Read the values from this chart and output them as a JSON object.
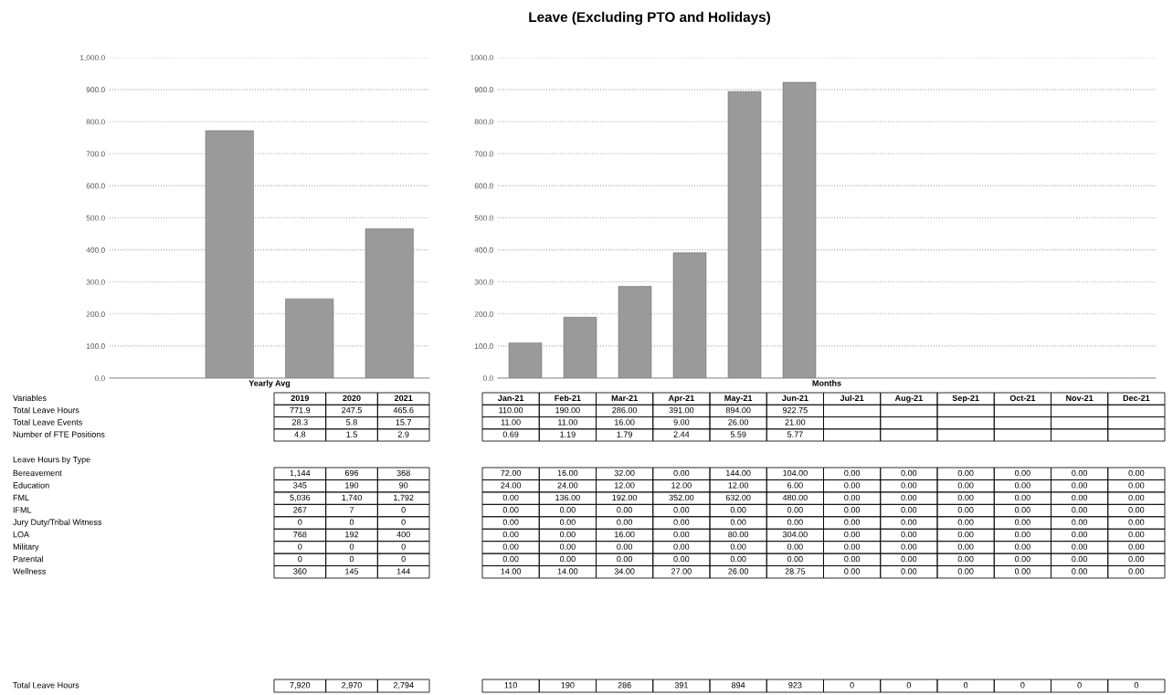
{
  "chart_data": [
    {
      "type": "bar",
      "xlabel": "Yearly Avg",
      "categories": [
        null,
        null,
        null,
        null
      ],
      "values": [
        null,
        771.9,
        247.5,
        465.6
      ],
      "color": "#9a9a9a",
      "ylim": [
        0,
        1000
      ],
      "yticks": [
        {
          "value": 0,
          "label": "0.0"
        },
        {
          "value": 100,
          "label": "100.0"
        },
        {
          "value": 200,
          "label": "200.0"
        },
        {
          "value": 300,
          "label": "300.0"
        },
        {
          "value": 400,
          "label": "400.0"
        },
        {
          "value": 500,
          "label": "500.0"
        },
        {
          "value": 600,
          "label": "600.0"
        },
        {
          "value": 700,
          "label": "700.0"
        },
        {
          "value": 800,
          "label": "800.0"
        },
        {
          "value": 900,
          "label": "900.0"
        },
        {
          "value": 1000,
          "label": "1,000.0"
        }
      ],
      "grid": "y"
    },
    {
      "type": "bar",
      "title": "Leave (Excluding PTO and Holidays)",
      "xlabel": "Months",
      "categories": [
        null,
        null,
        null,
        null,
        null,
        null,
        null,
        null,
        null,
        null,
        null,
        null
      ],
      "values": [
        110,
        190,
        286,
        391,
        894,
        922.75,
        null,
        null,
        null,
        null,
        null,
        null
      ],
      "color": "#9a9a9a",
      "ylim": [
        0,
        1000
      ],
      "yticks": [
        {
          "value": 0,
          "label": "0.0"
        },
        {
          "value": 100,
          "label": "100.0"
        },
        {
          "value": 200,
          "label": "200.0"
        },
        {
          "value": 300,
          "label": "300.0"
        },
        {
          "value": 400,
          "label": "400.0"
        },
        {
          "value": 500,
          "label": "500.0"
        },
        {
          "value": 600,
          "label": "600.0"
        },
        {
          "value": 700,
          "label": "700.0"
        },
        {
          "value": 800,
          "label": "800.0"
        },
        {
          "value": 900,
          "label": "900.0"
        },
        {
          "value": 1000,
          "label": "1000.0"
        }
      ],
      "grid": "y"
    },
    {
      "type": "other",
      "title": "Variables",
      "categories": [
        "2019",
        "2020",
        "2021"
      ],
      "y_categories": [
        "Total Leave Hours",
        "Total Leave Events",
        "Number of FTE Positions"
      ],
      "cell_labels": [
        [
          "771.9",
          "247.5",
          "465.6"
        ],
        [
          "28.3",
          "5.8",
          "15.7"
        ],
        [
          "4.8",
          "1.5",
          "2.9"
        ]
      ]
    },
    {
      "type": "other",
      "categories": [
        "Jan-21",
        "Feb-21",
        "Mar-21",
        "Apr-21",
        "May-21",
        "Jun-21",
        "Jul-21",
        "Aug-21",
        "Sep-21",
        "Oct-21",
        "Nov-21",
        "Dec-21"
      ],
      "cell_labels": [
        [
          "110.00",
          "190.00",
          "286.00",
          "391.00",
          "894.00",
          "922.75",
          null,
          null,
          null,
          null,
          null,
          null
        ],
        [
          "11.00",
          "11.00",
          "16.00",
          "9.00",
          "26.00",
          "21.00",
          null,
          null,
          null,
          null,
          null,
          null
        ],
        [
          "0.69",
          "1.19",
          "1.79",
          "2.44",
          "5.59",
          "5.77",
          null,
          null,
          null,
          null,
          null,
          null
        ]
      ]
    },
    {
      "type": "other",
      "title": "Leave Hours by Type",
      "y_categories": [
        "Bereavement",
        "Education",
        "FML",
        "IFML",
        "Jury Duty/Tribal Witness",
        "LOA",
        "Military",
        "Parental",
        "Wellness"
      ],
      "cell_labels": [
        [
          "1,144",
          "696",
          "368"
        ],
        [
          "345",
          "190",
          "90"
        ],
        [
          "5,036",
          "1,740",
          "1,792"
        ],
        [
          "267",
          "7",
          "0"
        ],
        [
          "0",
          "0",
          "0"
        ],
        [
          "768",
          "192",
          "400"
        ],
        [
          "0",
          "0",
          "0"
        ],
        [
          "0",
          "0",
          "0"
        ],
        [
          "360",
          "145",
          "144"
        ]
      ]
    },
    {
      "type": "other",
      "cell_labels": [
        [
          "72.00",
          "16.00",
          "32.00",
          "0.00",
          "144.00",
          "104.00",
          "0.00",
          "0.00",
          "0.00",
          "0.00",
          "0.00",
          "0.00"
        ],
        [
          "24.00",
          "24.00",
          "12.00",
          "12.00",
          "12.00",
          "6.00",
          "0.00",
          "0.00",
          "0.00",
          "0.00",
          "0.00",
          "0.00"
        ],
        [
          "0.00",
          "136.00",
          "192.00",
          "352.00",
          "632.00",
          "480.00",
          "0.00",
          "0.00",
          "0.00",
          "0.00",
          "0.00",
          "0.00"
        ],
        [
          "0.00",
          "0.00",
          "0.00",
          "0.00",
          "0.00",
          "0.00",
          "0.00",
          "0.00",
          "0.00",
          "0.00",
          "0.00",
          "0.00"
        ],
        [
          "0.00",
          "0.00",
          "0.00",
          "0.00",
          "0.00",
          "0.00",
          "0.00",
          "0.00",
          "0.00",
          "0.00",
          "0.00",
          "0.00"
        ],
        [
          "0.00",
          "0.00",
          "16.00",
          "0.00",
          "80.00",
          "304.00",
          "0.00",
          "0.00",
          "0.00",
          "0.00",
          "0.00",
          "0.00"
        ],
        [
          "0.00",
          "0.00",
          "0.00",
          "0.00",
          "0.00",
          "0.00",
          "0.00",
          "0.00",
          "0.00",
          "0.00",
          "0.00",
          "0.00"
        ],
        [
          "0.00",
          "0.00",
          "0.00",
          "0.00",
          "0.00",
          "0.00",
          "0.00",
          "0.00",
          "0.00",
          "0.00",
          "0.00",
          "0.00"
        ],
        [
          "14.00",
          "14.00",
          "34.00",
          "27.00",
          "26.00",
          "28.75",
          "0.00",
          "0.00",
          "0.00",
          "0.00",
          "0.00",
          "0.00"
        ]
      ]
    },
    {
      "type": "other",
      "y_categories": [
        "Total Leave Hours"
      ],
      "cell_labels": [
        [
          "7,920",
          "2,970",
          "2,794"
        ]
      ]
    },
    {
      "type": "other",
      "cell_labels": [
        [
          "110",
          "190",
          "286",
          "391",
          "894",
          "923",
          "0",
          "0",
          "0",
          "0",
          "0",
          "0"
        ]
      ]
    }
  ]
}
